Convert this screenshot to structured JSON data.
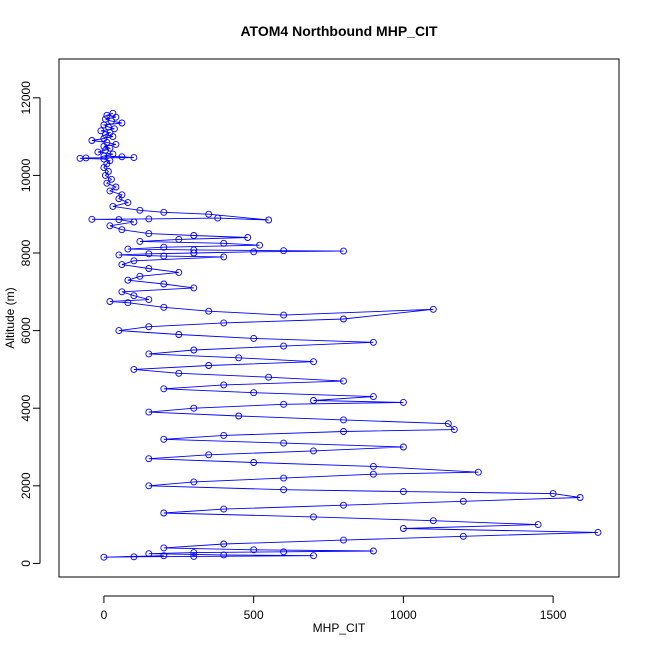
{
  "chart_data": {
    "type": "scatter",
    "title": "ATOM4 Northbound MHP_CIT",
    "xlabel": "MHP_CIT",
    "ylabel": "Altitude (m)",
    "xlim": [
      -150,
      1720
    ],
    "ylim": [
      -350,
      13000
    ],
    "x_ticks": [
      0,
      500,
      1000,
      1500
    ],
    "y_ticks": [
      0,
      2000,
      4000,
      6000,
      8000,
      10000,
      12000
    ],
    "series": [
      {
        "color": "#0000ff",
        "marker": "open-circle",
        "connected": true,
        "points": [
          [
            30,
            11600
          ],
          [
            10,
            11550
          ],
          [
            40,
            11500
          ],
          [
            5,
            11450
          ],
          [
            25,
            11400
          ],
          [
            60,
            11350
          ],
          [
            0,
            11300
          ],
          [
            15,
            11250
          ],
          [
            35,
            11200
          ],
          [
            -10,
            11150
          ],
          [
            20,
            11100
          ],
          [
            5,
            11050
          ],
          [
            30,
            11000
          ],
          [
            0,
            10950
          ],
          [
            -40,
            10900
          ],
          [
            10,
            10850
          ],
          [
            40,
            10800
          ],
          [
            0,
            10750
          ],
          [
            20,
            10700
          ],
          [
            5,
            10650
          ],
          [
            -20,
            10600
          ],
          [
            30,
            10550
          ],
          [
            0,
            10500
          ],
          [
            60,
            10480
          ],
          [
            100,
            10460
          ],
          [
            -60,
            10450
          ],
          [
            -80,
            10440
          ],
          [
            0,
            10420
          ],
          [
            20,
            10380
          ],
          [
            10,
            10300
          ],
          [
            0,
            10200
          ],
          [
            15,
            10100
          ],
          [
            5,
            10000
          ],
          [
            25,
            9900
          ],
          [
            10,
            9800
          ],
          [
            40,
            9700
          ],
          [
            20,
            9600
          ],
          [
            60,
            9500
          ],
          [
            50,
            9400
          ],
          [
            80,
            9300
          ],
          [
            30,
            9200
          ],
          [
            120,
            9100
          ],
          [
            200,
            9050
          ],
          [
            350,
            9000
          ],
          [
            550,
            8850
          ],
          [
            380,
            8900
          ],
          [
            150,
            8880
          ],
          [
            -40,
            8870
          ],
          [
            50,
            8860
          ],
          [
            100,
            8800
          ],
          [
            20,
            8700
          ],
          [
            60,
            8600
          ],
          [
            150,
            8500
          ],
          [
            300,
            8450
          ],
          [
            480,
            8400
          ],
          [
            250,
            8350
          ],
          [
            120,
            8300
          ],
          [
            400,
            8250
          ],
          [
            520,
            8200
          ],
          [
            200,
            8150
          ],
          [
            80,
            8100
          ],
          [
            300,
            8080
          ],
          [
            600,
            8060
          ],
          [
            800,
            8050
          ],
          [
            500,
            8030
          ],
          [
            300,
            8000
          ],
          [
            150,
            7980
          ],
          [
            50,
            7950
          ],
          [
            200,
            7920
          ],
          [
            400,
            7900
          ],
          [
            100,
            7800
          ],
          [
            60,
            7700
          ],
          [
            150,
            7600
          ],
          [
            250,
            7500
          ],
          [
            120,
            7400
          ],
          [
            80,
            7300
          ],
          [
            200,
            7200
          ],
          [
            300,
            7100
          ],
          [
            60,
            7000
          ],
          [
            100,
            6900
          ],
          [
            150,
            6800
          ],
          [
            20,
            6750
          ],
          [
            80,
            6720
          ],
          [
            200,
            6600
          ],
          [
            350,
            6500
          ],
          [
            600,
            6400
          ],
          [
            1100,
            6550
          ],
          [
            800,
            6300
          ],
          [
            400,
            6200
          ],
          [
            150,
            6100
          ],
          [
            50,
            6000
          ],
          [
            250,
            5900
          ],
          [
            500,
            5800
          ],
          [
            900,
            5700
          ],
          [
            600,
            5600
          ],
          [
            300,
            5500
          ],
          [
            150,
            5400
          ],
          [
            450,
            5300
          ],
          [
            700,
            5200
          ],
          [
            350,
            5100
          ],
          [
            100,
            5000
          ],
          [
            250,
            4900
          ],
          [
            550,
            4800
          ],
          [
            800,
            4700
          ],
          [
            400,
            4600
          ],
          [
            200,
            4500
          ],
          [
            500,
            4400
          ],
          [
            900,
            4300
          ],
          [
            700,
            4200
          ],
          [
            1000,
            4150
          ],
          [
            600,
            4100
          ],
          [
            300,
            4000
          ],
          [
            150,
            3900
          ],
          [
            450,
            3800
          ],
          [
            800,
            3700
          ],
          [
            1150,
            3600
          ],
          [
            1170,
            3450
          ],
          [
            800,
            3400
          ],
          [
            400,
            3300
          ],
          [
            200,
            3200
          ],
          [
            600,
            3100
          ],
          [
            1000,
            3000
          ],
          [
            700,
            2900
          ],
          [
            350,
            2800
          ],
          [
            150,
            2700
          ],
          [
            500,
            2600
          ],
          [
            900,
            2500
          ],
          [
            1250,
            2350
          ],
          [
            900,
            2300
          ],
          [
            600,
            2200
          ],
          [
            300,
            2100
          ],
          [
            150,
            2000
          ],
          [
            600,
            1900
          ],
          [
            1000,
            1850
          ],
          [
            1500,
            1800
          ],
          [
            1590,
            1700
          ],
          [
            1200,
            1600
          ],
          [
            800,
            1500
          ],
          [
            400,
            1400
          ],
          [
            200,
            1300
          ],
          [
            700,
            1200
          ],
          [
            1100,
            1100
          ],
          [
            1450,
            1000
          ],
          [
            1000,
            900
          ],
          [
            1650,
            800
          ],
          [
            1200,
            700
          ],
          [
            800,
            600
          ],
          [
            400,
            500
          ],
          [
            200,
            400
          ],
          [
            500,
            350
          ],
          [
            900,
            320
          ],
          [
            600,
            300
          ],
          [
            300,
            280
          ],
          [
            150,
            250
          ],
          [
            400,
            220
          ],
          [
            700,
            200
          ],
          [
            300,
            180
          ],
          [
            100,
            170
          ],
          [
            0,
            160
          ],
          [
            200,
            200
          ]
        ]
      }
    ]
  }
}
